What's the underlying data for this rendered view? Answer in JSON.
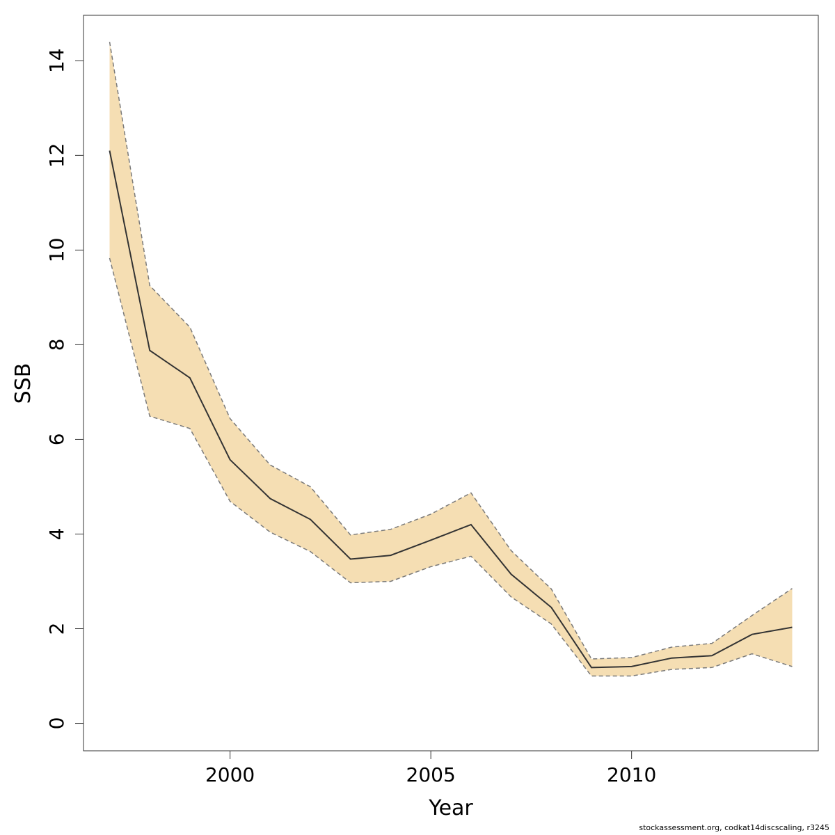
{
  "chart_data": {
    "type": "line",
    "xlabel": "Year",
    "ylabel": "SSB",
    "xlim": [
      1996.35,
      2014.65
    ],
    "ylim": [
      -0.58,
      14.96
    ],
    "x_ticks": [
      2000,
      2005,
      2010
    ],
    "y_ticks": [
      0,
      2,
      4,
      6,
      8,
      10,
      12,
      14
    ],
    "grid": false,
    "x": [
      1997,
      1998,
      1999,
      2000,
      2001,
      2002,
      2003,
      2004,
      2005,
      2006,
      2007,
      2008,
      2009,
      2010,
      2011,
      2012,
      2013,
      2014
    ],
    "series": [
      {
        "role": "estimate",
        "values": [
          12.1,
          7.88,
          7.3,
          5.57,
          4.75,
          4.31,
          3.47,
          3.55,
          3.87,
          4.2,
          3.15,
          2.45,
          1.18,
          1.2,
          1.38,
          1.43,
          1.88,
          2.03
        ]
      },
      {
        "role": "upper",
        "values": [
          14.4,
          9.25,
          8.37,
          6.44,
          5.46,
          5.0,
          3.98,
          4.1,
          4.42,
          4.87,
          3.65,
          2.84,
          1.36,
          1.39,
          1.61,
          1.69,
          2.28,
          2.85
        ]
      },
      {
        "role": "lower",
        "values": [
          9.83,
          6.49,
          6.23,
          4.69,
          4.04,
          3.63,
          2.97,
          3.0,
          3.31,
          3.53,
          2.67,
          2.1,
          1.0,
          1.0,
          1.14,
          1.18,
          1.47,
          1.2
        ]
      }
    ],
    "colors": {
      "band": "#f5deb3",
      "line": "#333333",
      "bound": "#7a7a7a"
    }
  },
  "footer": {
    "text": "stockassessment.org, codkat14discscaling, r3245"
  }
}
